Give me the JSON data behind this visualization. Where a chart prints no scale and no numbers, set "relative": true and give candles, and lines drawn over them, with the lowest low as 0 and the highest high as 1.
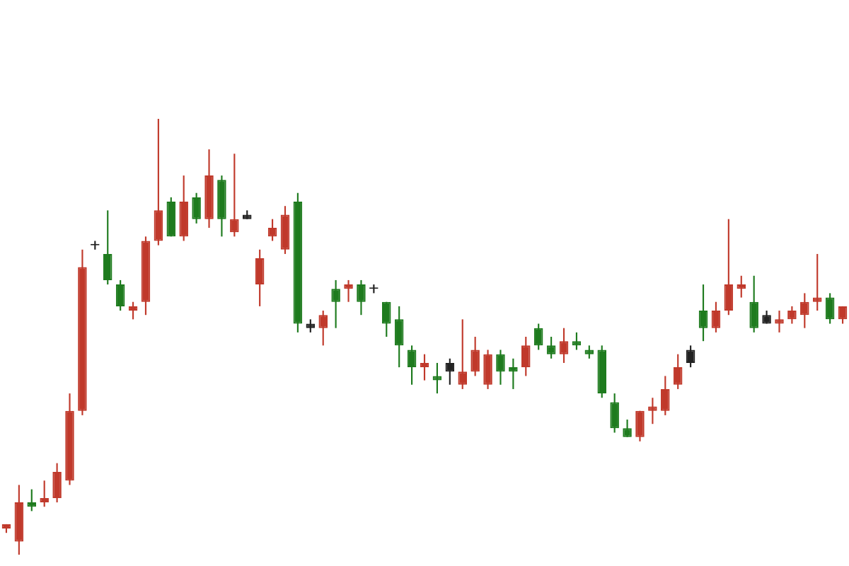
{
  "chart_data": {
    "type": "candlestick",
    "relative": true,
    "legend": false,
    "categories": [
      null,
      null,
      null,
      null,
      null,
      null,
      null,
      null,
      null,
      null,
      null,
      null,
      null,
      null,
      null,
      null,
      null,
      null,
      null,
      null,
      null,
      null,
      null,
      null,
      null,
      null,
      null,
      null,
      null,
      null,
      null,
      null,
      null,
      null,
      null,
      null,
      null,
      null,
      null,
      null,
      null,
      null,
      null,
      null,
      null,
      null,
      null,
      null,
      null,
      null,
      null,
      null,
      null,
      null,
      null,
      null,
      null,
      null,
      null,
      null,
      null,
      null,
      null,
      null,
      null,
      null,
      null
    ],
    "ohlc": [
      [
        0.06,
        0.07,
        0.05,
        0.07
      ],
      [
        0.03,
        0.16,
        0,
        0.12
      ],
      [
        0.12,
        0.15,
        0.1,
        0.11
      ],
      [
        0.12,
        0.17,
        0.11,
        0.13
      ],
      [
        0.13,
        0.21,
        0.12,
        0.19
      ],
      [
        0.17,
        0.37,
        0.16,
        0.33
      ],
      [
        0.33,
        0.7,
        0.32,
        0.66
      ],
      [
        0.71,
        0.72,
        0.7,
        0.71
      ],
      [
        0.69,
        0.79,
        0.62,
        0.63
      ],
      [
        0.62,
        0.63,
        0.56,
        0.57
      ],
      [
        0.56,
        0.58,
        0.54,
        0.57
      ],
      [
        0.58,
        0.73,
        0.55,
        0.72
      ],
      [
        0.72,
        1,
        0.71,
        0.79
      ],
      [
        0.81,
        0.82,
        0.73,
        0.73
      ],
      [
        0.73,
        0.87,
        0.72,
        0.81
      ],
      [
        0.82,
        0.83,
        0.76,
        0.77
      ],
      [
        0.77,
        0.93,
        0.75,
        0.87
      ],
      [
        0.86,
        0.87,
        0.73,
        0.77
      ],
      [
        0.74,
        0.92,
        0.73,
        0.77
      ],
      [
        0.78,
        0.79,
        0.77,
        0.77
      ],
      [
        0.62,
        0.7,
        0.57,
        0.68
      ],
      [
        0.73,
        0.77,
        0.72,
        0.75
      ],
      [
        0.7,
        0.8,
        0.69,
        0.78
      ],
      [
        0.81,
        0.83,
        0.51,
        0.53
      ],
      [
        0.53,
        0.54,
        0.51,
        0.52
      ],
      [
        0.52,
        0.56,
        0.48,
        0.55
      ],
      [
        0.61,
        0.63,
        0.52,
        0.58
      ],
      [
        0.61,
        0.63,
        0.58,
        0.62
      ],
      [
        0.62,
        0.63,
        0.55,
        0.58
      ],
      [
        0.61,
        0.62,
        0.6,
        0.61
      ],
      [
        0.58,
        0.58,
        0.5,
        0.53
      ],
      [
        0.54,
        0.57,
        0.43,
        0.48
      ],
      [
        0.47,
        0.48,
        0.39,
        0.43
      ],
      [
        0.43,
        0.46,
        0.4,
        0.44
      ],
      [
        0.41,
        0.44,
        0.37,
        0.4
      ],
      [
        0.44,
        0.45,
        0.39,
        0.42
      ],
      [
        0.39,
        0.54,
        0.38,
        0.42
      ],
      [
        0.42,
        0.5,
        0.41,
        0.47
      ],
      [
        0.39,
        0.47,
        0.38,
        0.46
      ],
      [
        0.46,
        0.47,
        0.39,
        0.42
      ],
      [
        0.43,
        0.45,
        0.38,
        0.42
      ],
      [
        0.43,
        0.5,
        0.41,
        0.48
      ],
      [
        0.52,
        0.53,
        0.47,
        0.48
      ],
      [
        0.48,
        0.5,
        0.45,
        0.46
      ],
      [
        0.46,
        0.52,
        0.44,
        0.49
      ],
      [
        0.49,
        0.51,
        0.47,
        0.48
      ],
      [
        0.47,
        0.48,
        0.45,
        0.46
      ],
      [
        0.47,
        0.48,
        0.36,
        0.37
      ],
      [
        0.35,
        0.37,
        0.28,
        0.29
      ],
      [
        0.29,
        0.31,
        0.27,
        0.27
      ],
      [
        0.27,
        0.33,
        0.26,
        0.33
      ],
      [
        0.33,
        0.36,
        0.3,
        0.34
      ],
      [
        0.33,
        0.41,
        0.32,
        0.38
      ],
      [
        0.39,
        0.46,
        0.38,
        0.43
      ],
      [
        0.47,
        0.48,
        0.43,
        0.44
      ],
      [
        0.56,
        0.62,
        0.49,
        0.52
      ],
      [
        0.52,
        0.58,
        0.51,
        0.56
      ],
      [
        0.56,
        0.77,
        0.55,
        0.62
      ],
      [
        0.61,
        0.64,
        0.59,
        0.62
      ],
      [
        0.58,
        0.64,
        0.51,
        0.52
      ],
      [
        0.55,
        0.56,
        0.53,
        0.53
      ],
      [
        0.53,
        0.56,
        0.51,
        0.54
      ],
      [
        0.54,
        0.57,
        0.53,
        0.56
      ],
      [
        0.55,
        0.6,
        0.52,
        0.58
      ],
      [
        0.58,
        0.69,
        0.56,
        0.59
      ],
      [
        0.59,
        0.6,
        0.53,
        0.54
      ],
      [
        0.54,
        0.57,
        0.53,
        0.57
      ]
    ],
    "colors": [
      "#c0392b",
      "#c0392b",
      "#1e7b1e",
      "#c0392b",
      "#c0392b",
      "#c0392b",
      "#c0392b",
      "#222222",
      "#1e7b1e",
      "#1e7b1e",
      "#c0392b",
      "#c0392b",
      "#c0392b",
      "#1e7b1e",
      "#c0392b",
      "#1e7b1e",
      "#c0392b",
      "#1e7b1e",
      "#c0392b",
      "#222222",
      "#c0392b",
      "#c0392b",
      "#c0392b",
      "#1e7b1e",
      "#222222",
      "#c0392b",
      "#1e7b1e",
      "#c0392b",
      "#1e7b1e",
      "#222222",
      "#1e7b1e",
      "#1e7b1e",
      "#1e7b1e",
      "#c0392b",
      "#1e7b1e",
      "#222222",
      "#c0392b",
      "#c0392b",
      "#c0392b",
      "#1e7b1e",
      "#1e7b1e",
      "#c0392b",
      "#1e7b1e",
      "#1e7b1e",
      "#c0392b",
      "#1e7b1e",
      "#1e7b1e",
      "#1e7b1e",
      "#1e7b1e",
      "#1e7b1e",
      "#c0392b",
      "#c0392b",
      "#c0392b",
      "#c0392b",
      "#222222",
      "#1e7b1e",
      "#c0392b",
      "#c0392b",
      "#c0392b",
      "#1e7b1e",
      "#222222",
      "#c0392b",
      "#c0392b",
      "#c0392b",
      "#c0392b",
      "#1e7b1e",
      "#c0392b"
    ]
  }
}
